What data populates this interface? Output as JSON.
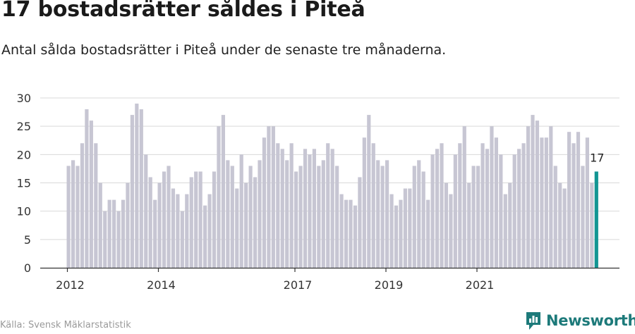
{
  "title": "17 bostadsrätter såldes i Piteå",
  "subtitle": "Antal sålda bostadsrätter i Piteå under de senaste tre månaderna.",
  "source": "Källa: Svensk Mäklarstatistik",
  "brand": "Newsworthy",
  "colors": {
    "bar": "#c7c6d3",
    "highlight": "#129593",
    "grid": "#d9d9d9",
    "axis": "#333333",
    "brand": "#1d7a7a"
  },
  "chart_data": {
    "type": "bar",
    "ylim": [
      0,
      30
    ],
    "yticks": [
      0,
      5,
      10,
      15,
      20,
      25,
      30
    ],
    "xtick_labels": [
      {
        "label": "2012",
        "index": 0
      },
      {
        "label": "2014",
        "index": 20
      },
      {
        "label": "2017",
        "index": 50
      },
      {
        "label": "2019",
        "index": 70
      },
      {
        "label": "2021",
        "index": 90
      }
    ],
    "values": [
      18,
      19,
      18,
      22,
      28,
      26,
      22,
      15,
      10,
      12,
      12,
      10,
      12,
      15,
      27,
      29,
      28,
      20,
      16,
      12,
      15,
      17,
      18,
      14,
      13,
      10,
      13,
      16,
      17,
      17,
      11,
      13,
      17,
      25,
      27,
      19,
      18,
      14,
      20,
      15,
      18,
      16,
      19,
      23,
      25,
      25,
      22,
      21,
      19,
      22,
      17,
      18,
      21,
      20,
      21,
      18,
      19,
      22,
      21,
      18,
      13,
      12,
      12,
      11,
      16,
      23,
      27,
      22,
      19,
      18,
      19,
      13,
      11,
      12,
      14,
      14,
      18,
      19,
      17,
      12,
      20,
      21,
      22,
      15,
      13,
      20,
      22,
      25,
      15,
      18,
      18,
      22,
      21,
      25,
      23,
      20,
      13,
      15,
      20,
      21,
      22,
      25,
      27,
      26,
      23,
      23,
      25,
      18,
      15,
      14,
      24,
      22,
      24,
      18,
      23,
      15,
      17
    ],
    "highlight_index": 116,
    "highlight_label": "17"
  }
}
